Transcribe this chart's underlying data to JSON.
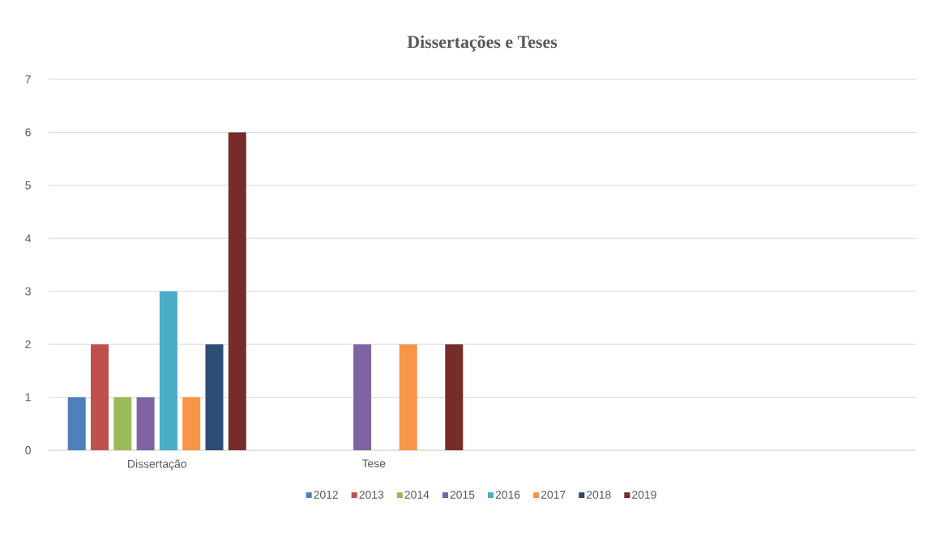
{
  "chart_data": {
    "type": "bar",
    "title": "Dissertações e Teses",
    "categories": [
      "Dissertação",
      "Tese",
      null,
      null
    ],
    "series": [
      {
        "name": "2012",
        "color": "#4f81bd",
        "values": [
          1,
          null,
          null,
          null
        ]
      },
      {
        "name": "2013",
        "color": "#c0504d",
        "values": [
          2,
          null,
          null,
          null
        ]
      },
      {
        "name": "2014",
        "color": "#9bbb59",
        "values": [
          1,
          null,
          null,
          null
        ]
      },
      {
        "name": "2015",
        "color": "#8064a2",
        "values": [
          1,
          2,
          null,
          null
        ]
      },
      {
        "name": "2016",
        "color": "#4bacc6",
        "values": [
          3,
          null,
          null,
          null
        ]
      },
      {
        "name": "2017",
        "color": "#f79646",
        "values": [
          1,
          2,
          null,
          null
        ]
      },
      {
        "name": "2018",
        "color": "#2c4d75",
        "values": [
          2,
          null,
          null,
          null
        ]
      },
      {
        "name": "2019",
        "color": "#772c2a",
        "values": [
          6,
          2,
          null,
          null
        ]
      }
    ],
    "ylim": [
      0,
      7
    ],
    "yticks": [
      0,
      1,
      2,
      3,
      4,
      5,
      6,
      7
    ],
    "grid": "y",
    "legend": "bottom"
  }
}
